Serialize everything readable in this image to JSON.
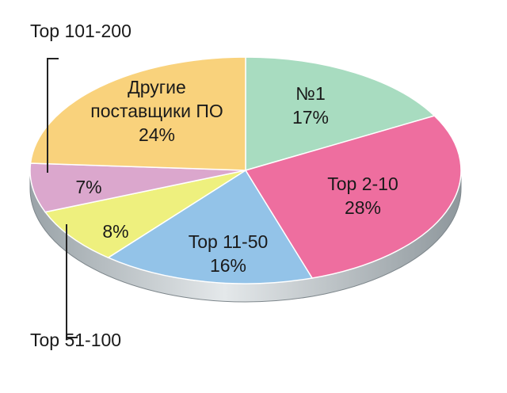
{
  "chart_data": {
    "type": "pie3d",
    "categories": [
      "№1",
      "Top 2-10",
      "Top 11-50",
      "Top 51-100",
      "Top 101-200",
      "Другие поставщики ПО"
    ],
    "values": [
      17,
      28,
      16,
      8,
      7,
      24
    ],
    "value_labels": [
      "17%",
      "28%",
      "16%",
      "8%",
      "7%",
      "24%"
    ],
    "colors": [
      "#a8dcc0",
      "#ee6e9f",
      "#93c3e8",
      "#eef07e",
      "#dba7cd",
      "#f9d27c"
    ]
  }
}
